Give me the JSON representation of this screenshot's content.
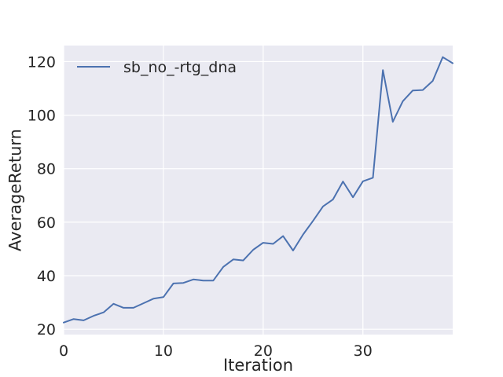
{
  "chart_data": {
    "type": "line",
    "title": "",
    "xlabel": "Iteration",
    "ylabel": "AverageReturn",
    "xlim": [
      0,
      39
    ],
    "ylim": [
      18,
      126
    ],
    "xticks": [
      0,
      10,
      20,
      30
    ],
    "yticks": [
      20,
      40,
      60,
      80,
      100,
      120
    ],
    "grid": true,
    "legend_position": "top-left",
    "style": {
      "background": "#eaeaf2",
      "grid_color": "#ffffff",
      "line_color": "#4c72b0"
    },
    "series": [
      {
        "name": "sb_no_-rtg_dna",
        "x": [
          0,
          1,
          2,
          3,
          4,
          5,
          6,
          7,
          8,
          9,
          10,
          11,
          12,
          13,
          14,
          15,
          16,
          17,
          18,
          19,
          20,
          21,
          22,
          23,
          24,
          25,
          26,
          27,
          28,
          29,
          30,
          31,
          32,
          33,
          34,
          35,
          36,
          37,
          38,
          39
        ],
        "y": [
          22.5,
          23.8,
          23.3,
          25.0,
          26.3,
          29.5,
          28.0,
          28.0,
          29.7,
          31.4,
          32.0,
          37.1,
          37.3,
          38.6,
          38.2,
          38.2,
          43.3,
          46.1,
          45.7,
          49.7,
          52.3,
          51.9,
          54.8,
          49.4,
          55.4,
          60.5,
          65.9,
          68.5,
          75.2,
          69.3,
          75.3,
          76.6,
          116.8,
          97.5,
          105.2,
          109.2,
          109.4,
          112.8,
          121.7,
          119.4
        ]
      }
    ]
  }
}
